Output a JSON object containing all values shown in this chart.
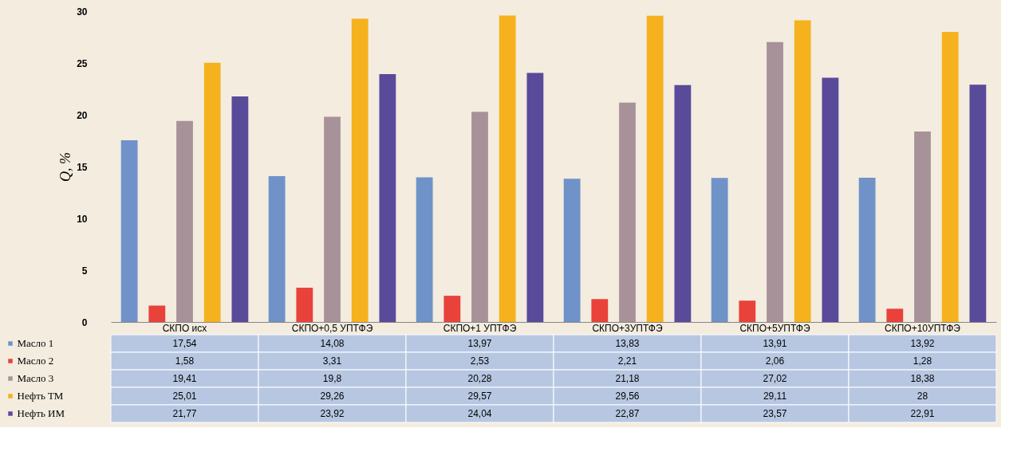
{
  "chart_data": {
    "type": "bar",
    "ylabel": "Q, %",
    "categories": [
      "СКПО исх",
      "СКПО+0,5 УПТФЭ",
      "СКПО+1 УПТФЭ",
      "СКПО+3УПТФЭ",
      "СКПО+5УПТФЭ",
      "СКПО+10УПТФЭ"
    ],
    "series": [
      {
        "name": "Масло 1",
        "color": "#6f93c8",
        "values": [
          17.54,
          14.08,
          13.97,
          13.83,
          13.91,
          13.92
        ],
        "value_labels": [
          "17,54",
          "14,08",
          "13,97",
          "13,83",
          "13,91",
          "13,92"
        ]
      },
      {
        "name": "Масло 2",
        "color": "#e8423a",
        "values": [
          1.58,
          3.31,
          2.53,
          2.21,
          2.06,
          1.28
        ],
        "value_labels": [
          "1,58",
          "3,31",
          "2,53",
          "2,21",
          "2,06",
          "1,28"
        ]
      },
      {
        "name": "Масло 3",
        "color": "#a8929a",
        "values": [
          19.41,
          19.8,
          20.28,
          21.18,
          27.02,
          18.38
        ],
        "value_labels": [
          "19,41",
          "19,8",
          "20,28",
          "21,18",
          "27,02",
          "18,38"
        ]
      },
      {
        "name": "Нефть ТМ",
        "color": "#f5b21e",
        "values": [
          25.01,
          29.26,
          29.57,
          29.56,
          29.11,
          28
        ],
        "value_labels": [
          "25,01",
          "29,26",
          "29,57",
          "29,56",
          "29,11",
          "28"
        ]
      },
      {
        "name": "Нефть ИМ",
        "color": "#5a4a9a",
        "values": [
          21.77,
          23.92,
          24.04,
          22.87,
          23.57,
          22.91
        ],
        "value_labels": [
          "21,77",
          "23,92",
          "24,04",
          "22,87",
          "23,57",
          "22,91"
        ]
      }
    ],
    "ylim": [
      0,
      30
    ],
    "yticks": [
      0,
      5,
      10,
      15,
      20,
      25,
      30
    ],
    "grid": false,
    "legend": "bottom"
  }
}
